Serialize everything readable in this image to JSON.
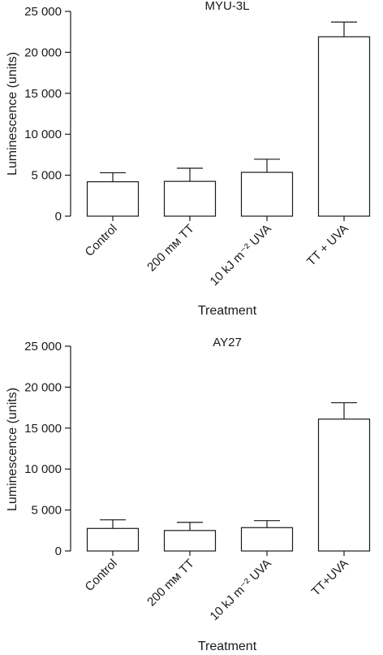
{
  "chart_data": [
    {
      "type": "bar",
      "title": "MYU-3L",
      "xlabel": "Treatment",
      "ylabel": "Luminescence (units)",
      "ylim": [
        0,
        25000
      ],
      "yticks": [
        0,
        5000,
        10000,
        15000,
        20000,
        25000
      ],
      "ytick_labels": [
        "0",
        "5 000",
        "10 000",
        "15 000",
        "20 000",
        "25 000"
      ],
      "categories": [
        "Control",
        "200 mм TT",
        "10 kJ m⁻² UVA",
        "TT + UVA"
      ],
      "values": [
        4200,
        4250,
        5350,
        21900
      ],
      "errors": [
        1100,
        1600,
        1600,
        1800
      ],
      "grid": false,
      "legend": "none"
    },
    {
      "type": "bar",
      "title": "AY27",
      "xlabel": "Treatment",
      "ylabel": "Luminescence (units)",
      "ylim": [
        0,
        25000
      ],
      "yticks": [
        0,
        5000,
        10000,
        15000,
        20000,
        25000
      ],
      "ytick_labels": [
        "0",
        "5 000",
        "10 000",
        "15 000",
        "20 000",
        "25 000"
      ],
      "categories": [
        "Control",
        "200 mм TT",
        "10 kJ m⁻² UVA",
        "TT+UVA"
      ],
      "values": [
        2750,
        2500,
        2850,
        16100
      ],
      "errors": [
        1050,
        1000,
        850,
        2000
      ],
      "grid": false,
      "legend": "none"
    }
  ]
}
